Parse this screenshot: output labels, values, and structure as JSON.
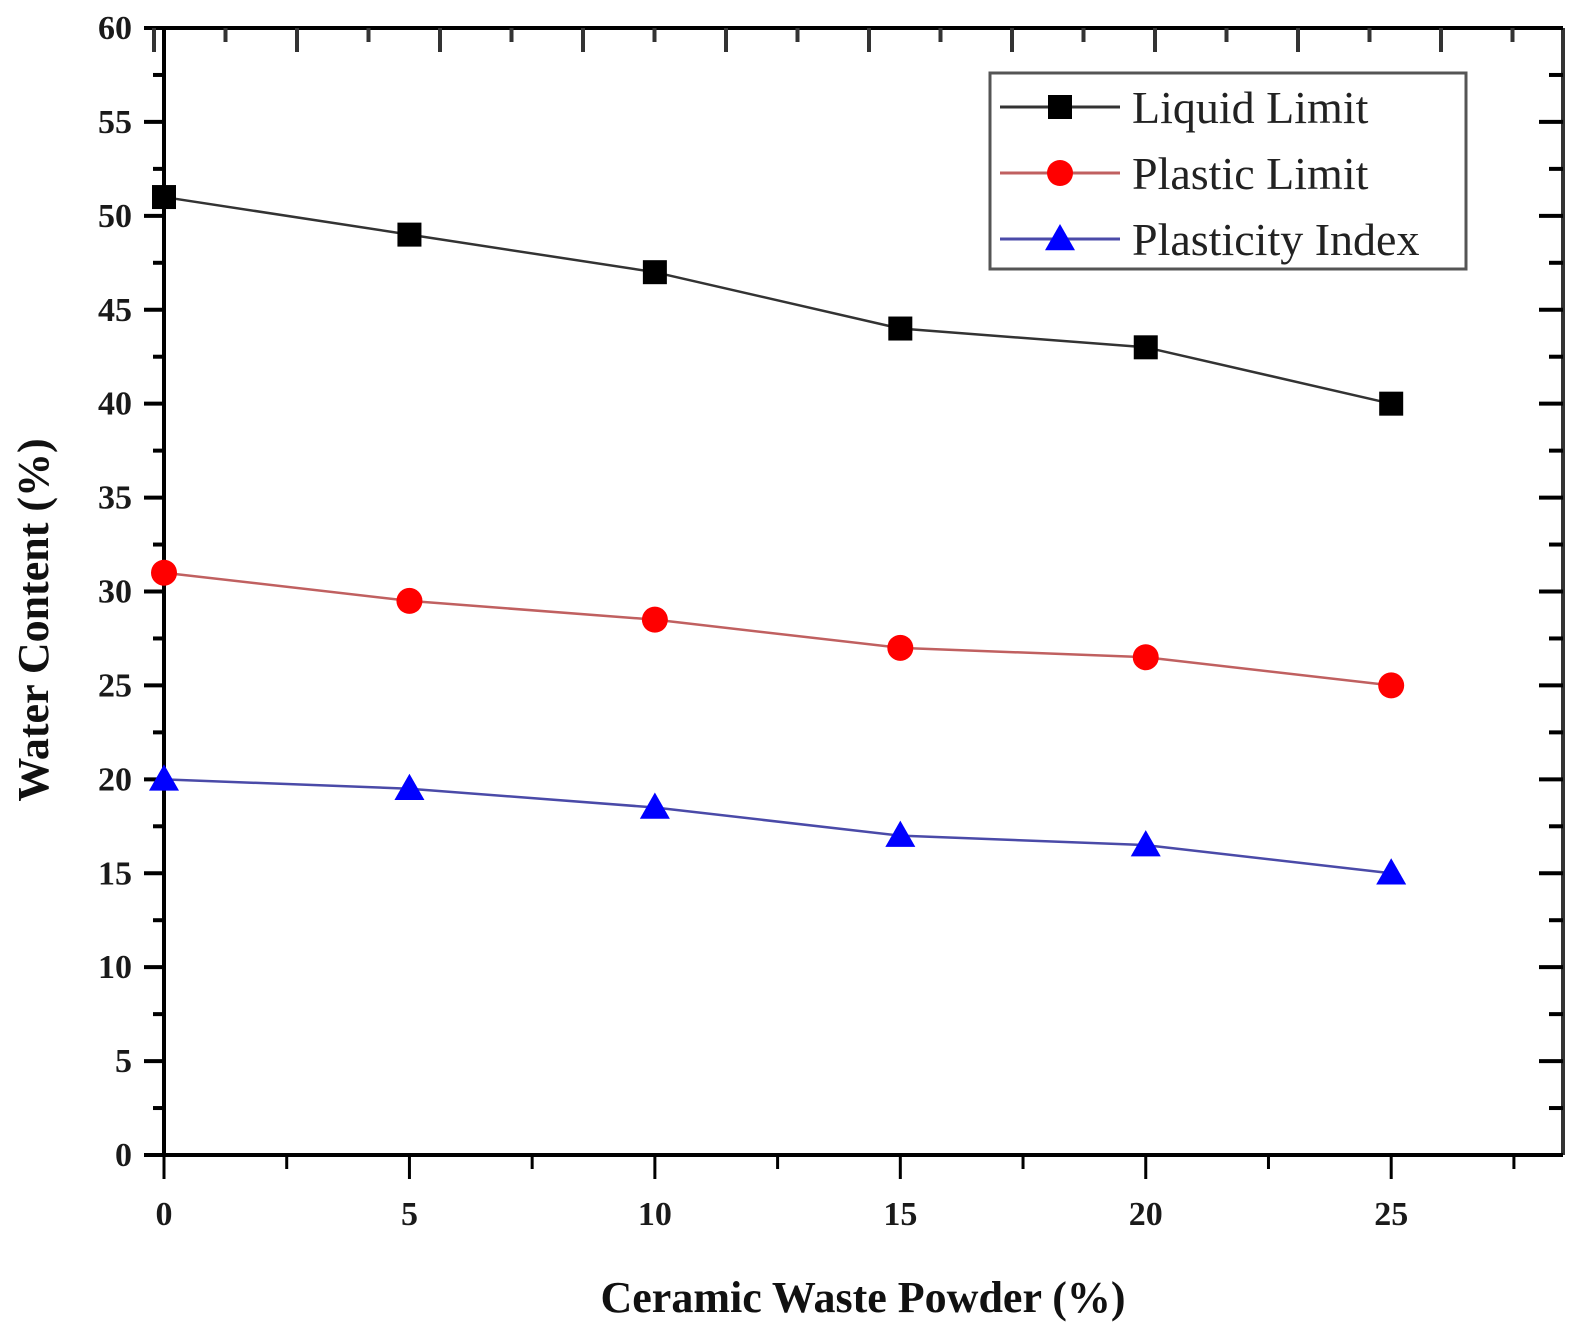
{
  "chart_data": {
    "type": "line",
    "title": "",
    "xlabel": "Ceramic Waste Powder (%)",
    "ylabel": "Water Content (%)",
    "x": [
      0,
      5,
      10,
      15,
      20,
      25
    ],
    "xlim": [
      0,
      28.5
    ],
    "ylim": [
      0,
      60
    ],
    "xticks": [
      0,
      5,
      10,
      15,
      20,
      25
    ],
    "xtick_labels": [
      "0",
      "5",
      "10",
      "15",
      "20",
      "25"
    ],
    "yticks": [
      0,
      5,
      10,
      15,
      20,
      25,
      30,
      35,
      40,
      45,
      50,
      55,
      60
    ],
    "ytick_labels": [
      "0",
      "5",
      "10",
      "15",
      "20",
      "25",
      "30",
      "35",
      "40",
      "45",
      "50",
      "55",
      "60"
    ],
    "grid": false,
    "legend_position": "top-right",
    "series": [
      {
        "name": "Liquid Limit",
        "marker": "square",
        "color": "#000000",
        "line_color": "#333333",
        "values": [
          51,
          49,
          47,
          44,
          43,
          40
        ]
      },
      {
        "name": "Plastic Limit",
        "marker": "circle",
        "color": "#ff0000",
        "line_color": "#c06060",
        "values": [
          31,
          29.5,
          28.5,
          27,
          26.5,
          25
        ]
      },
      {
        "name": "Plasticity Index",
        "marker": "triangle",
        "color": "#0000ff",
        "line_color": "#4a4aa8",
        "values": [
          20,
          19.5,
          18.5,
          17,
          16.5,
          15
        ]
      }
    ]
  }
}
